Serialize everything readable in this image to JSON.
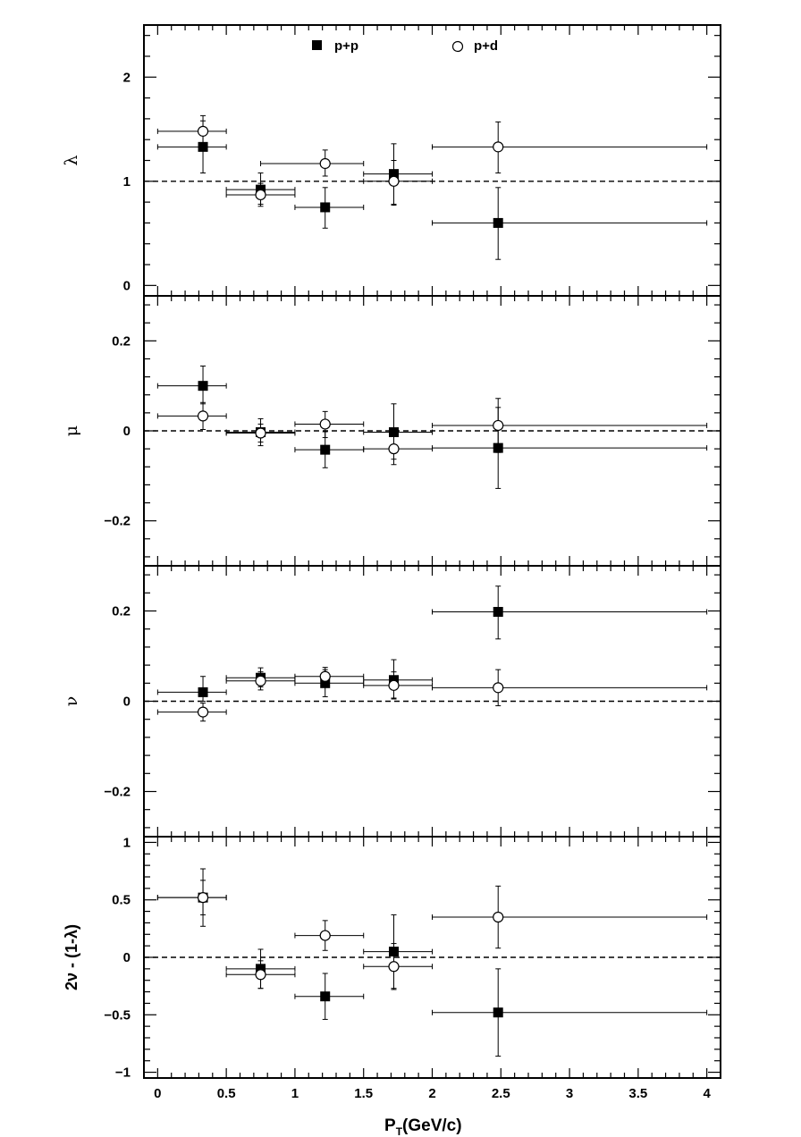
{
  "chart_data": {
    "type": "scatter",
    "xlabel": {
      "main": "P",
      "sub": "T",
      "rest": "(GeV/c)"
    },
    "x_range": [
      -0.1,
      4.1
    ],
    "x_ticks": [
      {
        "v": 0,
        "label": "0"
      },
      {
        "v": 0.5,
        "label": "0.5"
      },
      {
        "v": 1,
        "label": "1"
      },
      {
        "v": 1.5,
        "label": "1.5"
      },
      {
        "v": 2,
        "label": "2"
      },
      {
        "v": 2.5,
        "label": "2.5"
      },
      {
        "v": 3,
        "label": "3"
      },
      {
        "v": 3.5,
        "label": "3.5"
      },
      {
        "v": 4,
        "label": "4"
      }
    ],
    "legend": [
      {
        "name": "p+p",
        "marker": "filled-square"
      },
      {
        "name": "p+d",
        "marker": "open-circle"
      }
    ],
    "legend_position": "top",
    "reference_line": "dashed",
    "panels": [
      {
        "id": "lambda",
        "ylabel": "λ",
        "ylim": [
          -0.1,
          2.5
        ],
        "y_ticks": [
          {
            "v": 0,
            "label": "0"
          },
          {
            "v": 1,
            "label": "1"
          },
          {
            "v": 2,
            "label": "2"
          }
        ],
        "reference": 1,
        "series": [
          {
            "name": "p+p",
            "marker": "filled-square",
            "points": [
              {
                "x": 0.33,
                "y": 1.33,
                "xlo": 0.0,
                "xhi": 0.5,
                "elo": 0.25,
                "ehi": 0.25
              },
              {
                "x": 0.75,
                "y": 0.92,
                "xlo": 0.5,
                "xhi": 1.0,
                "elo": 0.14,
                "ehi": 0.16
              },
              {
                "x": 1.22,
                "y": 0.75,
                "xlo": 1.0,
                "xhi": 1.5,
                "elo": 0.2,
                "ehi": 0.19
              },
              {
                "x": 1.72,
                "y": 1.07,
                "xlo": 1.5,
                "xhi": 2.0,
                "elo": 0.3,
                "ehi": 0.29
              },
              {
                "x": 2.48,
                "y": 0.6,
                "xlo": 2.0,
                "xhi": 4.0,
                "elo": 0.35,
                "ehi": 0.34
              }
            ]
          },
          {
            "name": "p+d",
            "marker": "open-circle",
            "points": [
              {
                "x": 0.33,
                "y": 1.48,
                "xlo": 0.0,
                "xhi": 0.5,
                "elo": 0.13,
                "ehi": 0.15
              },
              {
                "x": 0.75,
                "y": 0.87,
                "xlo": 0.5,
                "xhi": 1.0,
                "elo": 0.11,
                "ehi": 0.11
              },
              {
                "x": 1.22,
                "y": 1.17,
                "xlo": 0.75,
                "xhi": 1.5,
                "elo": 0.12,
                "ehi": 0.13
              },
              {
                "x": 1.72,
                "y": 1.0,
                "xlo": 1.5,
                "xhi": 2.0,
                "elo": 0.22,
                "ehi": 0.2
              },
              {
                "x": 2.48,
                "y": 1.33,
                "xlo": 2.0,
                "xhi": 4.0,
                "elo": 0.25,
                "ehi": 0.24
              }
            ]
          }
        ]
      },
      {
        "id": "mu",
        "ylabel": "μ",
        "ylim": [
          -0.3,
          0.3
        ],
        "y_ticks": [
          {
            "v": -0.2,
            "label": "−0.2"
          },
          {
            "v": 0,
            "label": "0"
          },
          {
            "v": 0.2,
            "label": "0.2"
          }
        ],
        "reference": 0,
        "series": [
          {
            "name": "p+p",
            "marker": "filled-square",
            "points": [
              {
                "x": 0.33,
                "y": 0.1,
                "xlo": 0.0,
                "xhi": 0.5,
                "elo": 0.04,
                "ehi": 0.044
              },
              {
                "x": 0.75,
                "y": -0.003,
                "xlo": 0.5,
                "xhi": 1.0,
                "elo": 0.03,
                "ehi": 0.03
              },
              {
                "x": 1.22,
                "y": -0.042,
                "xlo": 1.0,
                "xhi": 1.5,
                "elo": 0.04,
                "ehi": 0.04
              },
              {
                "x": 1.72,
                "y": -0.003,
                "xlo": 1.5,
                "xhi": 2.0,
                "elo": 0.06,
                "ehi": 0.063
              },
              {
                "x": 2.48,
                "y": -0.038,
                "xlo": 2.0,
                "xhi": 4.0,
                "elo": 0.09,
                "ehi": 0.09
              }
            ]
          },
          {
            "name": "p+d",
            "marker": "open-circle",
            "points": [
              {
                "x": 0.33,
                "y": 0.033,
                "xlo": 0.0,
                "xhi": 0.5,
                "elo": 0.03,
                "ehi": 0.03
              },
              {
                "x": 0.75,
                "y": -0.005,
                "xlo": 0.5,
                "xhi": 1.0,
                "elo": 0.02,
                "ehi": 0.02
              },
              {
                "x": 1.22,
                "y": 0.015,
                "xlo": 1.0,
                "xhi": 1.5,
                "elo": 0.03,
                "ehi": 0.028
              },
              {
                "x": 1.72,
                "y": -0.04,
                "xlo": 1.5,
                "xhi": 2.0,
                "elo": 0.035,
                "ehi": 0.035
              },
              {
                "x": 2.48,
                "y": 0.012,
                "xlo": 2.0,
                "xhi": 4.0,
                "elo": 0.06,
                "ehi": 0.06
              }
            ]
          }
        ]
      },
      {
        "id": "nu",
        "ylabel": "ν",
        "ylim": [
          -0.3,
          0.3
        ],
        "y_ticks": [
          {
            "v": -0.2,
            "label": "−0.2"
          },
          {
            "v": 0,
            "label": "0"
          },
          {
            "v": 0.2,
            "label": "0.2"
          }
        ],
        "reference": 0,
        "series": [
          {
            "name": "p+p",
            "marker": "filled-square",
            "points": [
              {
                "x": 0.33,
                "y": 0.02,
                "xlo": 0.0,
                "xhi": 0.5,
                "elo": 0.02,
                "ehi": 0.035
              },
              {
                "x": 0.75,
                "y": 0.052,
                "xlo": 0.5,
                "xhi": 1.0,
                "elo": 0.02,
                "ehi": 0.022
              },
              {
                "x": 1.22,
                "y": 0.04,
                "xlo": 1.0,
                "xhi": 1.5,
                "elo": 0.03,
                "ehi": 0.03
              },
              {
                "x": 1.72,
                "y": 0.047,
                "xlo": 1.5,
                "xhi": 2.0,
                "elo": 0.04,
                "ehi": 0.045
              },
              {
                "x": 2.48,
                "y": 0.198,
                "xlo": 2.0,
                "xhi": 4.0,
                "elo": 0.06,
                "ehi": 0.057
              }
            ]
          },
          {
            "name": "p+d",
            "marker": "open-circle",
            "points": [
              {
                "x": 0.33,
                "y": -0.024,
                "xlo": 0.0,
                "xhi": 0.5,
                "elo": 0.02,
                "ehi": 0.02
              },
              {
                "x": 0.75,
                "y": 0.045,
                "xlo": 0.5,
                "xhi": 1.0,
                "elo": 0.02,
                "ehi": 0.02
              },
              {
                "x": 1.22,
                "y": 0.055,
                "xlo": 1.0,
                "xhi": 1.5,
                "elo": 0.02,
                "ehi": 0.02
              },
              {
                "x": 1.72,
                "y": 0.035,
                "xlo": 1.5,
                "xhi": 2.0,
                "elo": 0.03,
                "ehi": 0.03
              },
              {
                "x": 2.48,
                "y": 0.03,
                "xlo": 2.0,
                "xhi": 4.0,
                "elo": 0.04,
                "ehi": 0.04
              }
            ]
          }
        ]
      },
      {
        "id": "combo",
        "ylabel": "2ν - (1-λ)",
        "ylim": [
          -1.05,
          1.05
        ],
        "y_ticks": [
          {
            "v": -1,
            "label": "−1"
          },
          {
            "v": -0.5,
            "label": "−0.5"
          },
          {
            "v": 0,
            "label": "0"
          },
          {
            "v": 0.5,
            "label": "0.5"
          },
          {
            "v": 1,
            "label": "1"
          }
        ],
        "reference": 0,
        "series": [
          {
            "name": "p+p",
            "marker": "filled-square",
            "points": [
              {
                "x": 0.33,
                "y": 0.52,
                "xlo": 0.0,
                "xhi": 0.5,
                "elo": 0.25,
                "ehi": 0.25
              },
              {
                "x": 0.75,
                "y": -0.1,
                "xlo": 0.5,
                "xhi": 1.0,
                "elo": 0.17,
                "ehi": 0.17
              },
              {
                "x": 1.22,
                "y": -0.34,
                "xlo": 1.0,
                "xhi": 1.5,
                "elo": 0.2,
                "ehi": 0.2
              },
              {
                "x": 1.72,
                "y": 0.05,
                "xlo": 1.5,
                "xhi": 2.0,
                "elo": 0.32,
                "ehi": 0.32
              },
              {
                "x": 2.48,
                "y": -0.48,
                "xlo": 2.0,
                "xhi": 4.0,
                "elo": 0.38,
                "ehi": 0.38
              }
            ]
          },
          {
            "name": "p+d",
            "marker": "open-circle",
            "points": [
              {
                "x": 0.33,
                "y": 0.52,
                "xlo": 0.0,
                "xhi": 0.5,
                "elo": 0.15,
                "ehi": 0.15
              },
              {
                "x": 0.75,
                "y": -0.15,
                "xlo": 0.5,
                "xhi": 1.0,
                "elo": 0.12,
                "ehi": 0.12
              },
              {
                "x": 1.22,
                "y": 0.19,
                "xlo": 1.0,
                "xhi": 1.5,
                "elo": 0.13,
                "ehi": 0.13
              },
              {
                "x": 1.72,
                "y": -0.08,
                "xlo": 1.5,
                "xhi": 2.0,
                "elo": 0.2,
                "ehi": 0.2
              },
              {
                "x": 2.48,
                "y": 0.35,
                "xlo": 2.0,
                "xhi": 4.0,
                "elo": 0.27,
                "ehi": 0.27
              }
            ]
          }
        ]
      }
    ]
  }
}
